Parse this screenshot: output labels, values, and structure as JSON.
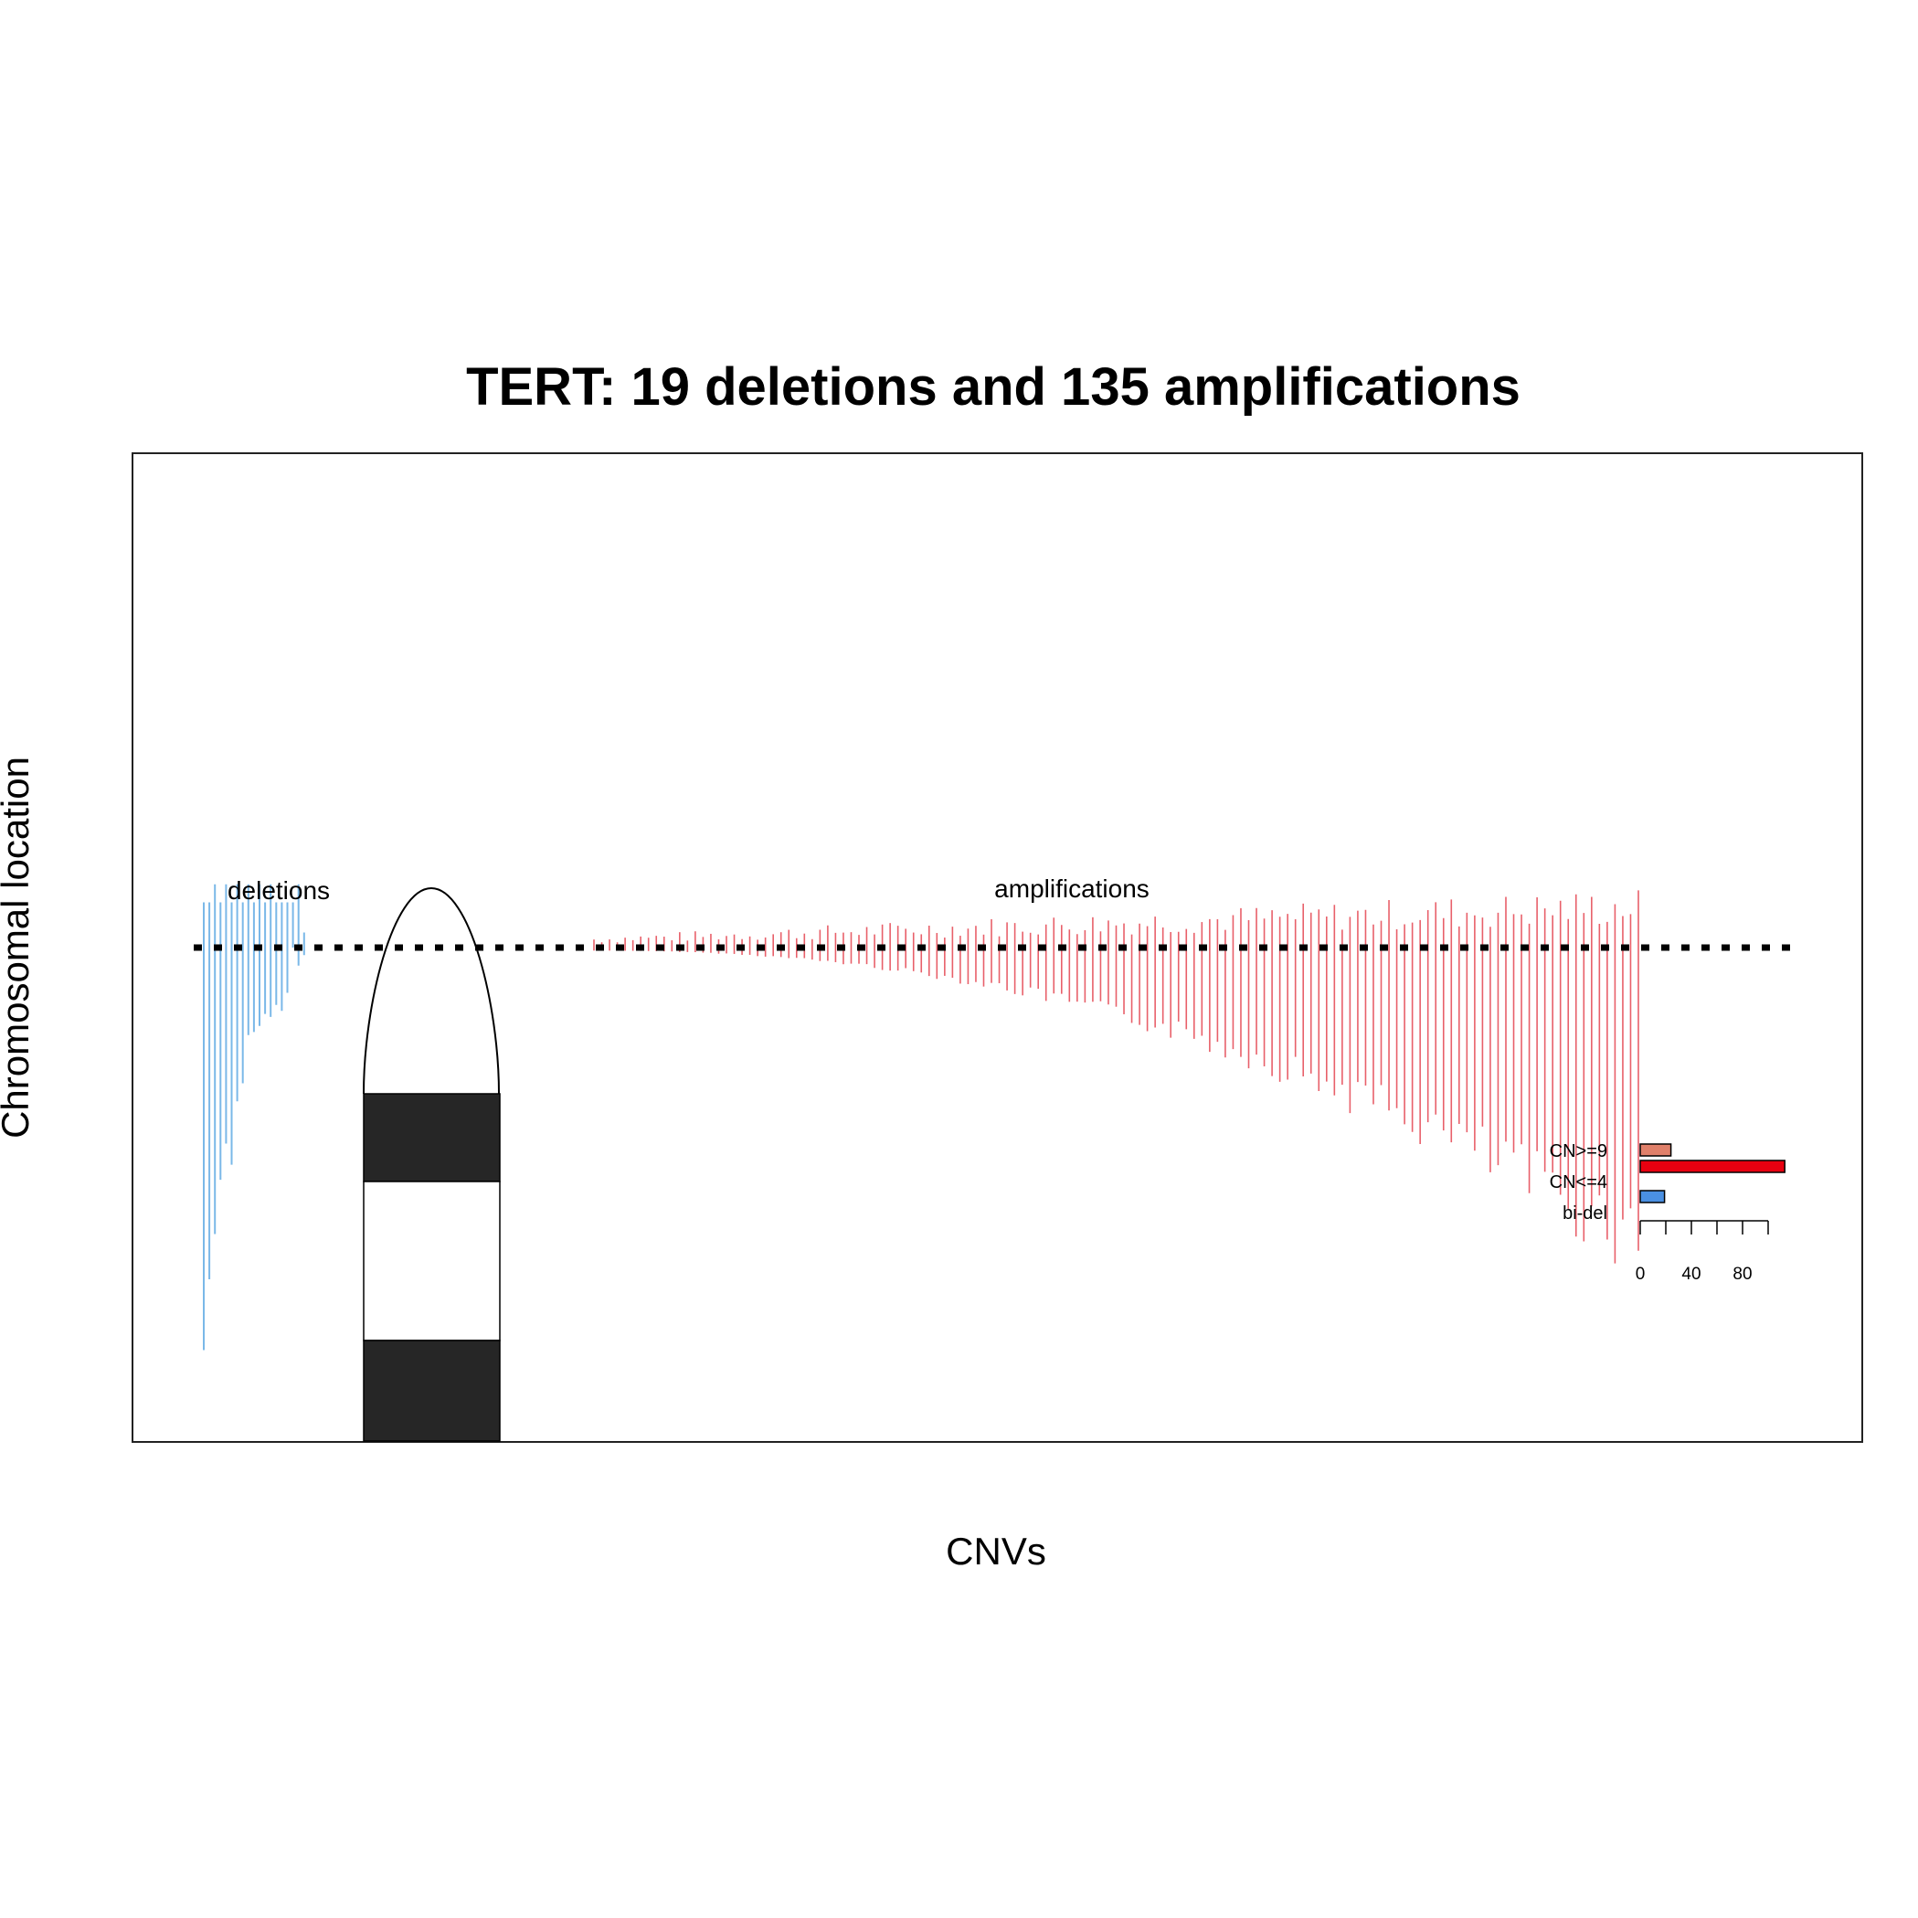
{
  "chart_data": {
    "type": "bar",
    "title": "TERT: 19 deletions and 135 amplifications",
    "xlabel": "CNVs",
    "ylabel": "Chromosomal location",
    "annotations": [
      "deletions",
      "amplifications"
    ],
    "gene_level": 0,
    "colors": {
      "deletion": "#7ab8e8",
      "amplification": "#e8606a"
    },
    "deletions": [
      {
        "top": 0.3,
        "bottom": -2.67
      },
      {
        "top": 0.3,
        "bottom": -2.2
      },
      {
        "top": 0.42,
        "bottom": -1.9
      },
      {
        "top": 0.3,
        "bottom": -1.54
      },
      {
        "top": 0.42,
        "bottom": -1.3
      },
      {
        "top": 0.3,
        "bottom": -1.44
      },
      {
        "top": 0.42,
        "bottom": -1.02
      },
      {
        "top": 0.3,
        "bottom": -0.9
      },
      {
        "top": 0.42,
        "bottom": -0.58
      },
      {
        "top": 0.3,
        "bottom": -0.56
      },
      {
        "top": 0.42,
        "bottom": -0.52
      },
      {
        "top": 0.3,
        "bottom": -0.44
      },
      {
        "top": 0.42,
        "bottom": -0.46
      },
      {
        "top": 0.3,
        "bottom": -0.38
      },
      {
        "top": 0.3,
        "bottom": -0.42
      },
      {
        "top": 0.3,
        "bottom": -0.3
      },
      {
        "top": 0.3,
        "bottom": 0.0
      },
      {
        "top": 0.42,
        "bottom": -0.12
      },
      {
        "top": 0.1,
        "bottom": -0.05
      }
    ],
    "amplification_count": 135,
    "chromosome_ideogram": {
      "centromere_from": 0.42,
      "centromere_to": -0.9
    },
    "inset_bar": {
      "categories": [
        "CN>=9",
        "CN<=4",
        "bi-del"
      ],
      "values": [
        24,
        113,
        19
      ],
      "bar_colors": [
        "#e0806a",
        "#e80010",
        "#4a90e2"
      ],
      "xticks": [
        0,
        20,
        40,
        60,
        80,
        100
      ],
      "xtick_labels": [
        "0",
        "40",
        "80"
      ]
    }
  }
}
